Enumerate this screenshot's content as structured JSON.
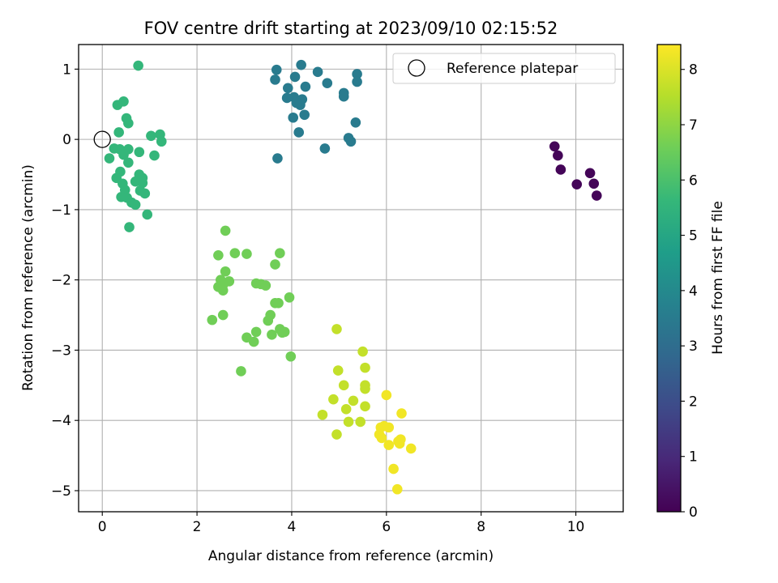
{
  "chart_data": {
    "type": "scatter",
    "title": "FOV centre drift starting at 2023/09/10 02:15:52",
    "xlabel": "Angular distance from reference (arcmin)",
    "ylabel": "Rotation from reference (arcmin)",
    "xlim": [
      -0.5,
      11.0
    ],
    "ylim": [
      -5.3,
      1.35
    ],
    "xticks": [
      0,
      2,
      4,
      6,
      8,
      10
    ],
    "yticks": [
      1,
      0,
      -1,
      -2,
      -3,
      -4,
      -5
    ],
    "grid": true,
    "legend": {
      "position": "top-right",
      "entries": [
        "Reference platepar"
      ]
    },
    "reference_point": {
      "x": 0,
      "y": 0
    },
    "colorbar": {
      "label": "Hours from first FF file",
      "range": [
        0,
        8.45
      ],
      "ticks": [
        0,
        1,
        2,
        3,
        4,
        5,
        6,
        7,
        8
      ],
      "colormap": "viridis"
    },
    "series": [
      {
        "color_value": 0.1,
        "points": [
          [
            9.55,
            -0.1
          ],
          [
            9.62,
            -0.23
          ],
          [
            9.68,
            -0.43
          ],
          [
            10.02,
            -0.64
          ],
          [
            10.3,
            -0.48
          ],
          [
            10.38,
            -0.63
          ],
          [
            10.44,
            -0.8
          ]
        ]
      },
      {
        "color_value": 3.5,
        "points": [
          [
            3.68,
            0.99
          ],
          [
            3.65,
            0.85
          ],
          [
            4.2,
            1.06
          ],
          [
            4.55,
            0.96
          ],
          [
            4.07,
            0.89
          ],
          [
            3.92,
            0.73
          ],
          [
            4.29,
            0.75
          ],
          [
            4.05,
            0.6
          ],
          [
            4.22,
            0.57
          ],
          [
            3.9,
            0.59
          ],
          [
            4.18,
            0.49
          ],
          [
            4.1,
            0.52
          ],
          [
            4.75,
            0.8
          ],
          [
            5.38,
            0.93
          ],
          [
            5.38,
            0.82
          ],
          [
            5.1,
            0.66
          ],
          [
            5.1,
            0.61
          ],
          [
            4.27,
            0.35
          ],
          [
            4.03,
            0.31
          ],
          [
            5.35,
            0.24
          ],
          [
            4.15,
            0.1
          ],
          [
            5.2,
            0.02
          ],
          [
            5.25,
            -0.03
          ],
          [
            4.7,
            -0.13
          ],
          [
            3.7,
            -0.27
          ]
        ]
      },
      {
        "color_value": 5.6,
        "points": [
          [
            0.76,
            1.05
          ],
          [
            0.45,
            0.54
          ],
          [
            0.32,
            0.49
          ],
          [
            0.51,
            0.3
          ],
          [
            0.55,
            0.23
          ],
          [
            0.35,
            0.1
          ],
          [
            1.03,
            0.05
          ],
          [
            1.22,
            0.07
          ],
          [
            1.25,
            -0.03
          ],
          [
            0.25,
            -0.13
          ],
          [
            0.37,
            -0.14
          ],
          [
            0.55,
            -0.14
          ],
          [
            0.78,
            -0.18
          ],
          [
            0.45,
            -0.22
          ],
          [
            0.15,
            -0.27
          ],
          [
            1.1,
            -0.23
          ],
          [
            0.55,
            -0.33
          ],
          [
            0.38,
            -0.46
          ],
          [
            0.3,
            -0.55
          ],
          [
            0.78,
            -0.5
          ],
          [
            0.85,
            -0.55
          ],
          [
            0.7,
            -0.6
          ],
          [
            0.43,
            -0.63
          ],
          [
            0.85,
            -0.62
          ],
          [
            0.48,
            -0.72
          ],
          [
            0.8,
            -0.73
          ],
          [
            0.9,
            -0.77
          ],
          [
            0.4,
            -0.82
          ],
          [
            0.52,
            -0.83
          ],
          [
            0.62,
            -0.9
          ],
          [
            0.7,
            -0.93
          ],
          [
            0.95,
            -1.07
          ],
          [
            0.57,
            -1.25
          ]
        ]
      },
      {
        "color_value": 6.6,
        "points": [
          [
            2.6,
            -1.3
          ],
          [
            2.45,
            -1.65
          ],
          [
            2.8,
            -1.62
          ],
          [
            3.05,
            -1.63
          ],
          [
            3.75,
            -1.62
          ],
          [
            3.65,
            -1.78
          ],
          [
            2.6,
            -1.88
          ],
          [
            2.5,
            -2.0
          ],
          [
            2.68,
            -2.02
          ],
          [
            2.55,
            -2.07
          ],
          [
            2.45,
            -2.1
          ],
          [
            2.55,
            -2.15
          ],
          [
            3.25,
            -2.05
          ],
          [
            3.35,
            -2.06
          ],
          [
            3.45,
            -2.08
          ],
          [
            3.65,
            -2.33
          ],
          [
            3.72,
            -2.33
          ],
          [
            3.95,
            -2.25
          ],
          [
            2.55,
            -2.5
          ],
          [
            2.32,
            -2.57
          ],
          [
            3.55,
            -2.5
          ],
          [
            3.5,
            -2.58
          ],
          [
            3.75,
            -2.7
          ],
          [
            3.85,
            -2.74
          ],
          [
            3.8,
            -2.75
          ],
          [
            3.25,
            -2.74
          ],
          [
            3.05,
            -2.82
          ],
          [
            3.2,
            -2.88
          ],
          [
            3.58,
            -2.78
          ],
          [
            3.98,
            -3.09
          ],
          [
            2.93,
            -3.3
          ]
        ]
      },
      {
        "color_value": 7.7,
        "points": [
          [
            4.95,
            -2.7
          ],
          [
            5.5,
            -3.02
          ],
          [
            4.98,
            -3.29
          ],
          [
            5.55,
            -3.25
          ],
          [
            5.1,
            -3.5
          ],
          [
            5.55,
            -3.5
          ],
          [
            5.55,
            -3.55
          ],
          [
            5.3,
            -3.72
          ],
          [
            4.88,
            -3.7
          ],
          [
            5.55,
            -3.8
          ],
          [
            5.15,
            -3.84
          ],
          [
            4.65,
            -3.92
          ],
          [
            5.2,
            -4.02
          ],
          [
            5.45,
            -4.02
          ],
          [
            4.95,
            -4.2
          ]
        ]
      },
      {
        "color_value": 8.3,
        "points": [
          [
            6.0,
            -3.64
          ],
          [
            6.32,
            -3.9
          ],
          [
            5.88,
            -4.1
          ],
          [
            5.95,
            -4.08
          ],
          [
            6.05,
            -4.1
          ],
          [
            5.85,
            -4.2
          ],
          [
            5.9,
            -4.25
          ],
          [
            6.25,
            -4.3
          ],
          [
            6.3,
            -4.27
          ],
          [
            6.05,
            -4.35
          ],
          [
            6.28,
            -4.33
          ],
          [
            6.52,
            -4.4
          ],
          [
            6.15,
            -4.69
          ],
          [
            6.23,
            -4.98
          ]
        ]
      }
    ],
    "colors": {
      "grid": "#b0b0b0",
      "axis": "#000000",
      "viridis_stops": [
        "#440154",
        "#482878",
        "#3e4a89",
        "#31688e",
        "#26828e",
        "#1f9e89",
        "#35b779",
        "#6ece58",
        "#b5de2b",
        "#fde725"
      ]
    }
  }
}
